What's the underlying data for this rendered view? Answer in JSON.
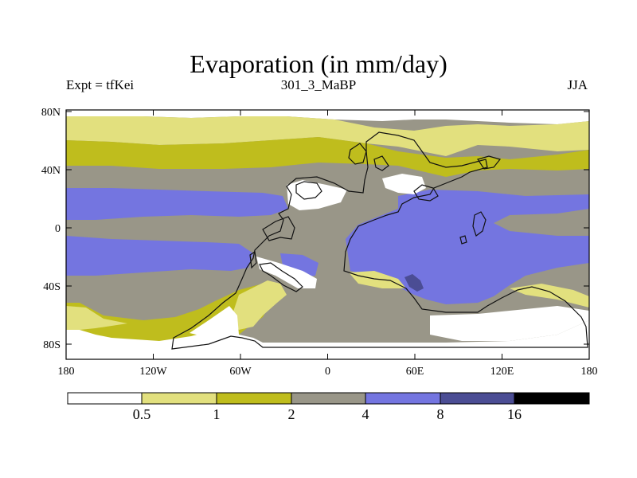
{
  "title": "Evaporation (in mm/day)",
  "subtitle_left": "Expt = tfKei",
  "subtitle_center": "301_3_MaBP",
  "subtitle_right": "JJA",
  "lat_ticks": [
    "80N",
    "40N",
    "0",
    "40S",
    "80S"
  ],
  "lon_ticks": [
    "180",
    "120W",
    "60W",
    "0",
    "60E",
    "120E",
    "180"
  ],
  "colorbar": {
    "levels": [
      "0.5",
      "1",
      "2",
      "4",
      "8",
      "16"
    ],
    "colors": [
      "#ffffff",
      "#e2e07e",
      "#bfbd1d",
      "#999688",
      "#7475e0",
      "#4b4d94",
      "#000000"
    ]
  }
}
